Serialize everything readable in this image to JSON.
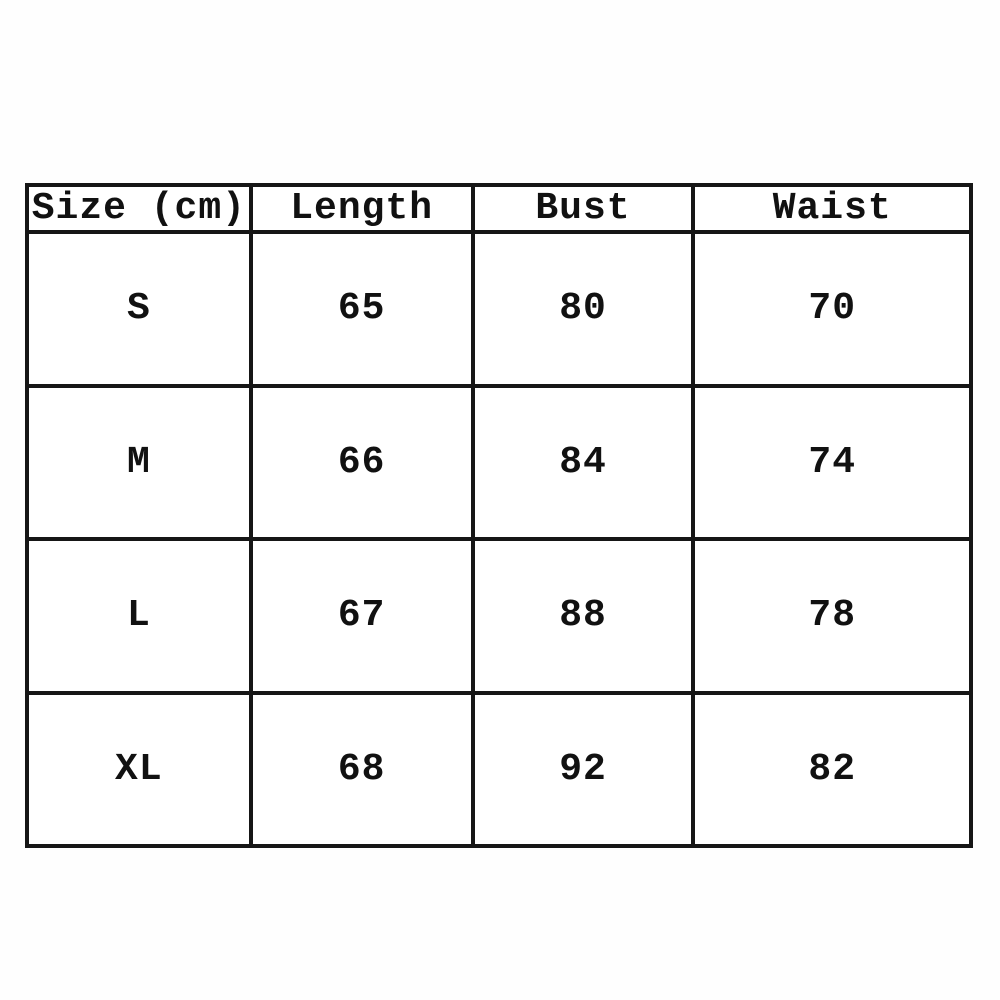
{
  "colors": {
    "background": "#ffffff",
    "border": "#161616",
    "text": "#111111"
  },
  "chart_data": {
    "type": "table",
    "columns": [
      "Size (cm)",
      "Length",
      "Bust",
      "Waist"
    ],
    "rows": [
      [
        "S",
        "65",
        "80",
        "70"
      ],
      [
        "M",
        "66",
        "84",
        "74"
      ],
      [
        "L",
        "67",
        "88",
        "78"
      ],
      [
        "XL",
        "68",
        "92",
        "82"
      ]
    ],
    "layout_hint": "size-chart grid, header row + 4 size rows, equal row heights, last column wider"
  }
}
